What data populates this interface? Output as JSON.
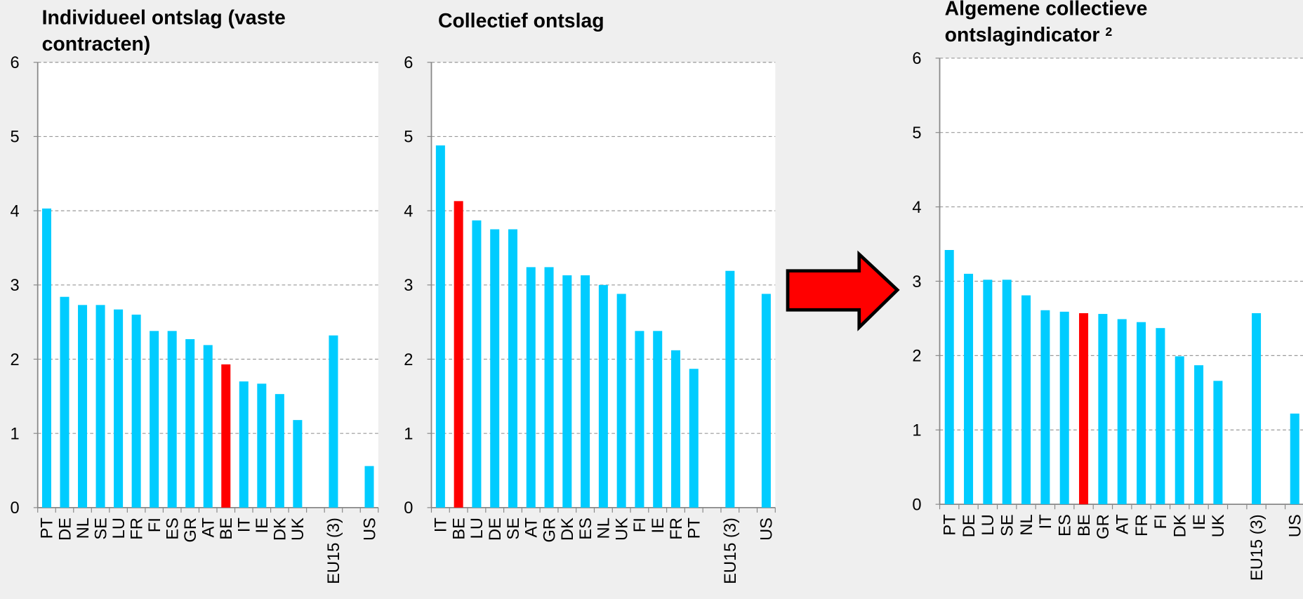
{
  "chart_data": [
    {
      "type": "bar",
      "title": "Individueel ontslag (vaste contracten)",
      "categories": [
        "PT",
        "DE",
        "NL",
        "SE",
        "LU",
        "FR",
        "FI",
        "ES",
        "GR",
        "AT",
        "BE",
        "IT",
        "IE",
        "DK",
        "UK",
        null,
        "EU15 (3)",
        null,
        "US"
      ],
      "values": [
        4.03,
        2.84,
        2.73,
        2.73,
        2.67,
        2.6,
        2.38,
        2.38,
        2.27,
        2.19,
        1.93,
        1.7,
        1.67,
        1.53,
        1.18,
        null,
        2.32,
        null,
        0.56
      ],
      "colors": [
        "#00ccff",
        "#00ccff",
        "#00ccff",
        "#00ccff",
        "#00ccff",
        "#00ccff",
        "#00ccff",
        "#00ccff",
        "#00ccff",
        "#00ccff",
        "#ff0000",
        "#00ccff",
        "#00ccff",
        "#00ccff",
        "#00ccff",
        null,
        "#00ccff",
        null,
        "#00ccff"
      ],
      "ylim": [
        0,
        6
      ],
      "yticks": [
        0,
        1,
        2,
        3,
        4,
        5,
        6
      ],
      "grid": true
    },
    {
      "type": "bar",
      "title": "Collectief ontslag",
      "categories": [
        "IT",
        "BE",
        "LU",
        "DE",
        "SE",
        "AT",
        "GR",
        "DK",
        "ES",
        "NL",
        "UK",
        "FI",
        "IE",
        "FR",
        "PT",
        null,
        "EU15 (3)",
        null,
        "US"
      ],
      "values": [
        4.88,
        4.13,
        3.87,
        3.75,
        3.75,
        3.24,
        3.24,
        3.13,
        3.13,
        3.0,
        2.88,
        2.38,
        2.38,
        2.12,
        1.87,
        null,
        3.19,
        null,
        2.88
      ],
      "colors": [
        "#00ccff",
        "#ff0000",
        "#00ccff",
        "#00ccff",
        "#00ccff",
        "#00ccff",
        "#00ccff",
        "#00ccff",
        "#00ccff",
        "#00ccff",
        "#00ccff",
        "#00ccff",
        "#00ccff",
        "#00ccff",
        "#00ccff",
        null,
        "#00ccff",
        null,
        "#00ccff"
      ],
      "ylim": [
        0,
        6
      ],
      "yticks": [
        0,
        1,
        2,
        3,
        4,
        5,
        6
      ],
      "grid": true
    },
    {
      "type": "bar",
      "title": "Algemene collectieve ontslagindicator",
      "title_superscript": "2",
      "categories": [
        "PT",
        "DE",
        "LU",
        "SE",
        "NL",
        "IT",
        "ES",
        "BE",
        "GR",
        "AT",
        "FR",
        "FI",
        "DK",
        "IE",
        "UK",
        null,
        "EU15 (3)",
        null,
        "US"
      ],
      "values": [
        3.42,
        3.1,
        3.02,
        3.02,
        2.81,
        2.61,
        2.59,
        2.57,
        2.56,
        2.49,
        2.45,
        2.37,
        1.99,
        1.87,
        1.66,
        null,
        2.57,
        null,
        1.22
      ],
      "colors": [
        "#00ccff",
        "#00ccff",
        "#00ccff",
        "#00ccff",
        "#00ccff",
        "#00ccff",
        "#00ccff",
        "#ff0000",
        "#00ccff",
        "#00ccff",
        "#00ccff",
        "#00ccff",
        "#00ccff",
        "#00ccff",
        "#00ccff",
        null,
        "#00ccff",
        null,
        "#00ccff"
      ],
      "ylim": [
        0,
        6
      ],
      "yticks": [
        0,
        1,
        2,
        3,
        4,
        5,
        6
      ],
      "grid": true
    }
  ]
}
